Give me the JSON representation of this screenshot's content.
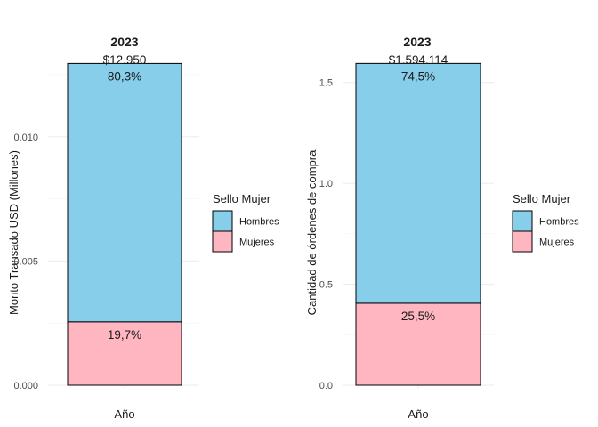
{
  "chart_data": [
    {
      "type": "bar",
      "stacked": true,
      "title": "2023",
      "xlabel": "Año",
      "ylabel": "Monto Transado USD (Millones)",
      "categories": [
        ""
      ],
      "ylim": [
        0,
        0.013
      ],
      "yticks": [
        0.0,
        0.005,
        0.01
      ],
      "ytick_labels": [
        "0.000",
        "0.005",
        "0.010"
      ],
      "total_label": "$12.950",
      "total_value": 0.01295,
      "series": [
        {
          "name": "Mujeres",
          "values": [
            0.00255
          ],
          "label": "19,7%",
          "color": "#FFB6C1"
        },
        {
          "name": "Hombres",
          "values": [
            0.0104
          ],
          "label": "80,3%",
          "color": "#87CEEB"
        }
      ],
      "legend": {
        "title": "Sello Mujer",
        "position": "right",
        "entries": [
          "Hombres",
          "Mujeres"
        ]
      },
      "grid": true
    },
    {
      "type": "bar",
      "stacked": true,
      "title": "2023",
      "xlabel": "Año",
      "ylabel": "Cantidad de órdenes de compra",
      "categories": [
        ""
      ],
      "ylim": [
        0,
        1.6
      ],
      "yticks": [
        0.0,
        0.5,
        1.0,
        1.5
      ],
      "ytick_labels": [
        "0.0",
        "0.5",
        "1.0",
        "1.5"
      ],
      "total_label": "$1.594.114",
      "total_value": 1.594,
      "series": [
        {
          "name": "Mujeres",
          "values": [
            0.406
          ],
          "label": "25,5%",
          "color": "#FFB6C1"
        },
        {
          "name": "Hombres",
          "values": [
            1.188
          ],
          "label": "74,5%",
          "color": "#87CEEB"
        }
      ],
      "legend": {
        "title": "Sello Mujer",
        "position": "right",
        "entries": [
          "Hombres",
          "Mujeres"
        ]
      },
      "grid": true
    }
  ]
}
